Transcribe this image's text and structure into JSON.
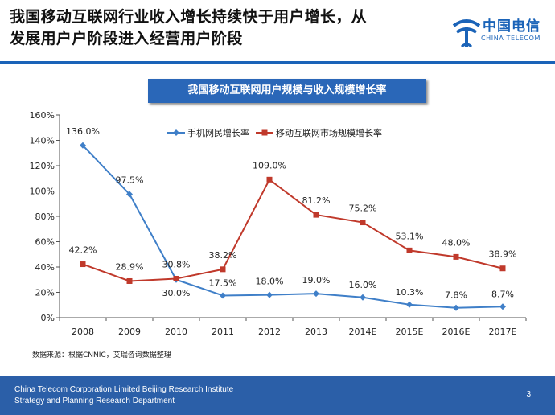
{
  "slide": {
    "title_line1": "我国移动互联网行业收入增长持续快于用户增长，从",
    "title_line2": "发展用户户阶段进入经营用户阶段"
  },
  "brand": {
    "name_cn": "中国电信",
    "name_en": "CHINA TELECOM",
    "color": "#1a63b8"
  },
  "chart_title": "我国移动互联网用户规模与收入规模增长率",
  "source_note": "数据来源：根据CNNIC，艾瑞咨询数据整理",
  "footer": {
    "line1": "China Telecom Corporation Limited Beijing Research Institute",
    "line2": "Strategy and Planning Research Department",
    "page": "3",
    "color": "#2b5fa8"
  },
  "chart_data": {
    "type": "line",
    "title": "我国移动互联网用户规模与收入规模增长率",
    "categories": [
      "2008",
      "2009",
      "2010",
      "2011",
      "2012",
      "2013",
      "2014E",
      "2015E",
      "2016E",
      "2017E"
    ],
    "ylim": [
      0,
      160
    ],
    "yticks": [
      "0%",
      "20%",
      "40%",
      "60%",
      "80%",
      "100%",
      "120%",
      "140%",
      "160%"
    ],
    "grid": false,
    "legend": "top",
    "series": [
      {
        "name": "手机网民增长率",
        "color": "#3f7fc8",
        "marker": "diamond",
        "values": [
          136.0,
          97.5,
          30.0,
          17.5,
          18.0,
          19.0,
          16.0,
          10.3,
          7.8,
          8.7
        ],
        "labels": [
          "136.0%",
          "97.5%",
          "30.0%",
          "17.5%",
          "18.0%",
          "19.0%",
          "16.0%",
          "10.3%",
          "7.8%",
          "8.7%"
        ]
      },
      {
        "name": "移动互联网市场规模增长率",
        "color": "#c0392b",
        "marker": "square",
        "values": [
          42.2,
          28.9,
          30.8,
          38.2,
          109.0,
          81.2,
          75.2,
          53.1,
          48.0,
          38.9
        ],
        "labels": [
          "42.2%",
          "28.9%",
          "30.8%",
          "38.2%",
          "109.0%",
          "81.2%",
          "75.2%",
          "53.1%",
          "48.0%",
          "38.9%"
        ]
      }
    ]
  }
}
